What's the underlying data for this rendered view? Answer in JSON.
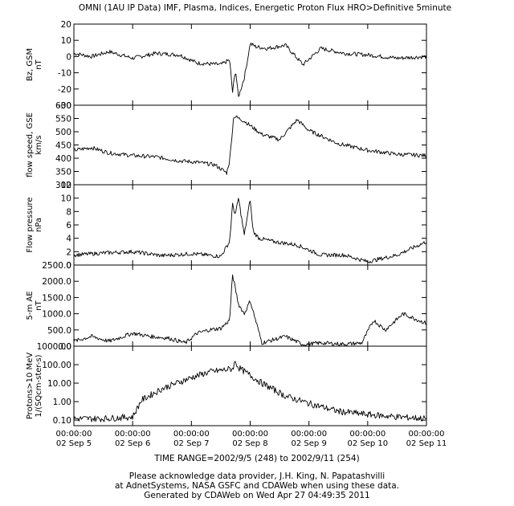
{
  "header": {
    "title": "OMNI (1AU IP Data)  IMF, Plasma, Indices, Energetic Proton Flux  HRO>Definitive 5minute"
  },
  "chart_data": {
    "type": "line",
    "title": "OMNI (1AU IP Data)  IMF, Plasma, Indices, Energetic Proton Flux  HRO>Definitive 5minute",
    "x_axis": {
      "range": [
        "2002-09-05 00:00:00",
        "2002-09-11 00:00:00"
      ],
      "tick_labels": [
        {
          "time": "00:00:00",
          "date": "02 Sep  5"
        },
        {
          "time": "00:00:00",
          "date": "02 Sep  6"
        },
        {
          "time": "00:00:00",
          "date": "02 Sep  7"
        },
        {
          "time": "00:00:00",
          "date": "02 Sep  8"
        },
        {
          "time": "00:00:00",
          "date": "02 Sep  9"
        },
        {
          "time": "00:00:00",
          "date": "02 Sep 10"
        },
        {
          "time": "00:00:00",
          "date": "02 Sep 11"
        }
      ],
      "time_range_label": "TIME RANGE=2002/9/5 (248) to 2002/9/11 (254)"
    },
    "panels": [
      {
        "ylabel": [
          "Bz, GSM",
          "nT"
        ],
        "ylim": [
          -30,
          20
        ],
        "ticks": [
          "-30",
          "-20",
          "-10",
          "0",
          "10",
          "20"
        ],
        "tick_values": [
          -30,
          -20,
          -10,
          0,
          10,
          20
        ],
        "log": false,
        "x_days": [
          0,
          0.3,
          0.6,
          1.0,
          1.4,
          1.8,
          2.1,
          2.5,
          2.65,
          2.7,
          2.75,
          2.8,
          2.9,
          2.95,
          3.0,
          3.1,
          3.3,
          3.6,
          3.9,
          4.2,
          4.6,
          5.0,
          5.5,
          6.0
        ],
        "values": [
          2,
          0,
          3,
          -1,
          2,
          1,
          -4,
          -5,
          -2,
          -22,
          -8,
          -25,
          -13,
          -3,
          8,
          6,
          5,
          7,
          -5,
          5,
          2,
          1,
          -1,
          0
        ]
      },
      {
        "ylabel": [
          "flow speed, GSE",
          "km/s"
        ],
        "ylim": [
          300,
          600
        ],
        "ticks": [
          "300",
          "350",
          "400",
          "450",
          "500",
          "550",
          "600"
        ],
        "tick_values": [
          300,
          350,
          400,
          450,
          500,
          550,
          600
        ],
        "log": false,
        "x_days": [
          0,
          0.3,
          0.6,
          1.0,
          1.4,
          1.8,
          2.1,
          2.4,
          2.6,
          2.65,
          2.72,
          2.9,
          3.2,
          3.5,
          3.8,
          4.0,
          4.2,
          4.5,
          5.0,
          5.5,
          6.0
        ],
        "values": [
          430,
          440,
          420,
          410,
          405,
          390,
          385,
          375,
          345,
          390,
          560,
          540,
          490,
          470,
          545,
          505,
          485,
          455,
          430,
          415,
          410
        ]
      },
      {
        "ylabel": [
          "Flow pressure",
          "nPa"
        ],
        "ylim": [
          0,
          12
        ],
        "ticks": [
          "0",
          "2",
          "4",
          "6",
          "8",
          "10",
          "12"
        ],
        "tick_values": [
          0,
          2,
          4,
          6,
          8,
          10,
          12
        ],
        "log": false,
        "x_days": [
          0,
          0.5,
          1.0,
          1.5,
          2.0,
          2.5,
          2.65,
          2.7,
          2.75,
          2.8,
          2.9,
          3.0,
          3.05,
          3.15,
          3.4,
          3.8,
          4.2,
          4.6,
          5.0,
          5.5,
          6.0
        ],
        "values": [
          1.5,
          1.8,
          2.0,
          1.4,
          1.7,
          1.3,
          3.5,
          9.0,
          7.5,
          10.0,
          4.5,
          9.8,
          5.0,
          4.0,
          3.5,
          3.0,
          1.5,
          1.5,
          0.5,
          1.5,
          3.5
        ]
      },
      {
        "ylabel": [
          "5-m AE",
          "nT"
        ],
        "ylim": [
          0,
          2500
        ],
        "ticks": [
          "0.0",
          "500.0",
          "1000.0",
          "1500.0",
          "2000.0",
          "2500.0"
        ],
        "tick_values": [
          0,
          500,
          1000,
          1500,
          2000,
          2500
        ],
        "log": false,
        "x_days": [
          0,
          0.3,
          0.6,
          1.0,
          1.3,
          1.6,
          1.9,
          2.1,
          2.3,
          2.5,
          2.65,
          2.7,
          2.8,
          2.9,
          3.0,
          3.2,
          3.6,
          3.9,
          4.2,
          4.6,
          4.9,
          5.1,
          5.3,
          5.6,
          6.0
        ],
        "values": [
          150,
          300,
          150,
          400,
          300,
          250,
          100,
          400,
          500,
          550,
          800,
          2200,
          1300,
          1000,
          1400,
          100,
          300,
          50,
          100,
          60,
          100,
          800,
          500,
          1000,
          700
        ]
      },
      {
        "ylabel": [
          "Protons>10 MeV",
          "1/(SQcm-ster-s)"
        ],
        "ylim": [
          0.05,
          1000
        ],
        "ticks": [
          "0.10",
          "1.00",
          "10.00",
          "100.00",
          "1000.00"
        ],
        "tick_values": [
          0.1,
          1,
          10,
          100,
          1000
        ],
        "log": true,
        "x_days": [
          0,
          0.5,
          1.0,
          1.15,
          1.5,
          2.0,
          2.3,
          2.7,
          2.75,
          2.8,
          3.2,
          3.6,
          4.0,
          4.5,
          5.0,
          5.5,
          6.0
        ],
        "values": [
          0.12,
          0.12,
          0.15,
          1.2,
          5,
          20,
          40,
          60,
          150,
          70,
          10,
          2,
          0.8,
          0.3,
          0.2,
          0.15,
          0.12
        ]
      }
    ]
  },
  "footer": {
    "line1": "Please acknowledge data provider, J.H. King, N. Papatashvilli",
    "line2": "at AdnetSystems, NASA GSFC and CDAWeb when using these data.",
    "line3": "Generated by CDAWeb on Wed Apr 27 04:49:35 2011"
  }
}
